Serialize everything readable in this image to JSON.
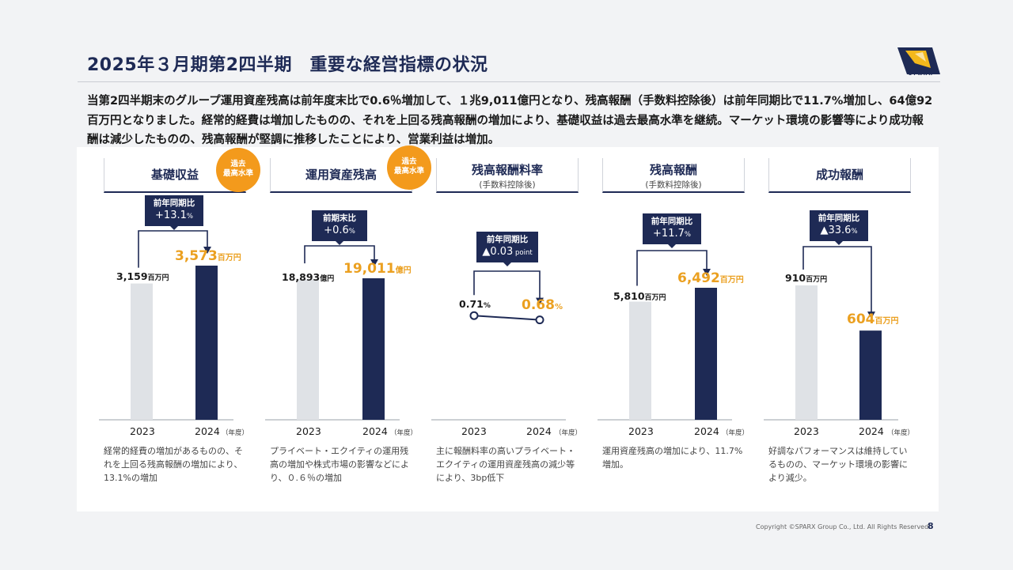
{
  "header": {
    "title": "2025年３月期第2四半期　重要な経営指標の状況",
    "logo_text": "SPARX"
  },
  "intro": "当第2四半期末のグループ運用資産残高は前年度末比で0.6％増加して、１兆9,011億円となり、残高報酬（手数料控除後）は前年同期比で11.7%増加し、64億92百万円となりました。経常的経費は増加したものの、それを上回る残高報酬の増加により、基礎収益は過去最高水準を継続。マーケット環境の影響等により成功報酬は減少したものの、残高報酬が堅調に推移したことにより、営業利益は増加。",
  "badge_text": "過去\n最高水準",
  "year_unit": "（年度）",
  "kpis": [
    {
      "title": "基礎収益",
      "subtitle": "",
      "badge": true,
      "callout_label": "前年同期比",
      "callout_value": "+13.1",
      "callout_unit": "%",
      "v2023": "3,159",
      "v2024": "3,573",
      "unit": "百万円",
      "year1": "2023",
      "year2": "2024",
      "note": "経常的経費の増加があるものの、それを上回る残高報酬の増加により、13.1%の増加"
    },
    {
      "title": "運用資産残高",
      "subtitle": "",
      "badge": true,
      "callout_label": "前期末比",
      "callout_value": "+0.6",
      "callout_unit": "%",
      "v2023": "18,893",
      "v2024": "19,011",
      "unit": "億円",
      "year1": "2023",
      "year2": "2024",
      "note": "プライベート・エクイティの運用残高の増加や株式市場の影響などにより、０.６％の増加"
    },
    {
      "title": "残高報酬料率",
      "subtitle": "(手数料控除後)",
      "badge": false,
      "callout_label": "前年同期比",
      "callout_value": "▲0.03",
      "callout_unit": " point",
      "v2023": "0.71",
      "v2024": "0.68",
      "unit": "%",
      "year1": "2023",
      "year2": "2024",
      "note": "主に報酬料率の高いプライベート・エクイティの運用資産残高の減少等により、3bp低下"
    },
    {
      "title": "残高報酬",
      "subtitle": "(手数料控除後)",
      "badge": false,
      "callout_label": "前年同期比",
      "callout_value": "+11.7",
      "callout_unit": "%",
      "v2023": "5,810",
      "v2024": "6,492",
      "unit": "百万円",
      "year1": "2023",
      "year2": "2024",
      "note": "運用資産残高の増加により、11.7%増加。"
    },
    {
      "title": "成功報酬",
      "subtitle": "",
      "badge": false,
      "callout_label": "前年同期比",
      "callout_value": "▲33.6",
      "callout_unit": "%",
      "v2023": "910",
      "v2024": "604",
      "unit": "百万円",
      "year1": "2023",
      "year2": "2024",
      "note": "好調なパフォーマンスは維持しているものの、マーケット環境の影響により減少。"
    }
  ],
  "chart_data": [
    {
      "type": "bar",
      "title": "基礎収益",
      "categories": [
        "2023",
        "2024"
      ],
      "values": [
        3159,
        3573
      ],
      "unit": "百万円"
    },
    {
      "type": "bar",
      "title": "運用資産残高",
      "categories": [
        "2023",
        "2024"
      ],
      "values": [
        18893,
        19011
      ],
      "unit": "億円"
    },
    {
      "type": "line",
      "title": "残高報酬料率",
      "categories": [
        "2023",
        "2024"
      ],
      "values": [
        0.71,
        0.68
      ],
      "unit": "%"
    },
    {
      "type": "bar",
      "title": "残高報酬",
      "categories": [
        "2023",
        "2024"
      ],
      "values": [
        5810,
        6492
      ],
      "unit": "百万円"
    },
    {
      "type": "bar",
      "title": "成功報酬",
      "categories": [
        "2023",
        "2024"
      ],
      "values": [
        910,
        604
      ],
      "unit": "百万円"
    }
  ],
  "footer": {
    "copyright": "Copyright ©SPARX Group Co., Ltd. All Rights Reserved.",
    "page": "8"
  },
  "colors": {
    "navy": "#1e2a55",
    "gray_bar": "#dfe2e6",
    "orange": "#f39a1c",
    "highlight": "#eba020"
  }
}
